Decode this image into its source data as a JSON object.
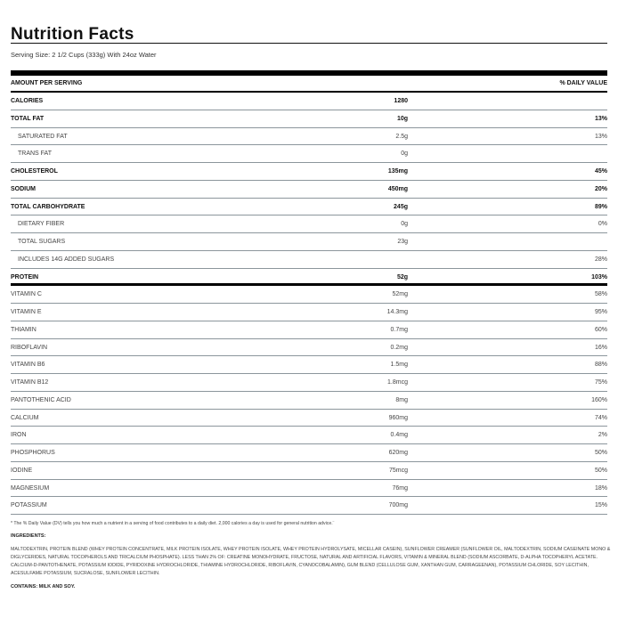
{
  "title": "Nutrition Facts",
  "serving_size": "Serving Size: 2 1/2 Cups (333g) With 24oz Water",
  "header": {
    "amount_label": "AMOUNT PER SERVING",
    "dv_label": "% DAILY VALUE"
  },
  "rows": [
    {
      "name": "CALORIES",
      "amount": "1280",
      "dv": "",
      "style": "bold"
    },
    {
      "name": "TOTAL FAT",
      "amount": "10g",
      "dv": "13%",
      "style": "bold"
    },
    {
      "name": "SATURATED FAT",
      "amount": "2.5g",
      "dv": "13%",
      "style": "indent"
    },
    {
      "name": "TRANS FAT",
      "amount": "0g",
      "dv": "",
      "style": "indent"
    },
    {
      "name": "CHOLESTEROL",
      "amount": "135mg",
      "dv": "45%",
      "style": "bold"
    },
    {
      "name": "SODIUM",
      "amount": "450mg",
      "dv": "20%",
      "style": "bold"
    },
    {
      "name": "TOTAL CARBOHYDRATE",
      "amount": "245g",
      "dv": "89%",
      "style": "bold"
    },
    {
      "name": "DIETARY FIBER",
      "amount": "0g",
      "dv": "0%",
      "style": "indent"
    },
    {
      "name": "TOTAL SUGARS",
      "amount": "23g",
      "dv": "",
      "style": "indent"
    },
    {
      "name": "INCLUDES 14G ADDED SUGARS",
      "amount": "",
      "dv": "28%",
      "style": "indent"
    },
    {
      "name": "PROTEIN",
      "amount": "52g",
      "dv": "103%",
      "style": "bold thick"
    },
    {
      "name": "VITAMIN C",
      "amount": "52mg",
      "dv": "58%",
      "style": ""
    },
    {
      "name": "VITAMIN E",
      "amount": "14.3mg",
      "dv": "95%",
      "style": ""
    },
    {
      "name": "THIAMIN",
      "amount": "0.7mg",
      "dv": "60%",
      "style": ""
    },
    {
      "name": "RIBOFLAVIN",
      "amount": "0.2mg",
      "dv": "16%",
      "style": ""
    },
    {
      "name": "VITAMIN B6",
      "amount": "1.5mg",
      "dv": "88%",
      "style": ""
    },
    {
      "name": "VITAMIN B12",
      "amount": "1.8mcg",
      "dv": "75%",
      "style": ""
    },
    {
      "name": "PANTOTHENIC ACID",
      "amount": "8mg",
      "dv": "160%",
      "style": ""
    },
    {
      "name": "CALCIUM",
      "amount": "960mg",
      "dv": "74%",
      "style": ""
    },
    {
      "name": "IRON",
      "amount": "0.4mg",
      "dv": "2%",
      "style": ""
    },
    {
      "name": "PHOSPHORUS",
      "amount": "620mg",
      "dv": "50%",
      "style": ""
    },
    {
      "name": "IODINE",
      "amount": "75mcg",
      "dv": "50%",
      "style": ""
    },
    {
      "name": "MAGNESIUM",
      "amount": "76mg",
      "dv": "18%",
      "style": ""
    },
    {
      "name": "POTASSIUM",
      "amount": "700mg",
      "dv": "15%",
      "style": ""
    }
  ],
  "footnote": "* The % Daily Value (DV) tells you how much a nutrient in a serving of food contributes to a daily diet. 2,000 calories a day is used for general nutrition advice.¨",
  "ingredients_heading": "INGREDIENTS:",
  "ingredients": "MALTODEXTRIN, PROTEIN BLEND (WHEY PROTEIN CONCENTRATE, MILK PROTEIN ISOLATE, WHEY PROTEIN ISOLATE, WHEY PROTEIN HYDROLYSATE, MICELLAR CASEIN), SUNFLOWER CREAMER (SUNFLOWER OIL, MALTODEXTRIN, SODIUM CASEINATE MONO & DIGLYCERIDES, NATURAL TOCOPHEROLS AND TRICALCIUM PHOSPHATE). LESS THAN 2% OF: CREATINE MONOHYDRATE, FRUCTOSE, NATURAL AND ARTIFICIAL FLAVORS, VITAMIN & MINERAL BLEND (SODIUM ASCORBATE, D-ALPHA TOCOPHERYL ACETATE. CALCIUM-D-PANTOTHENATE, POTASSIUM IODIDE, PYRIDOXINE HYDROCHLORIDE, THIAMINE HYDROCHLORIDE, RIBOFLAVIN, CYANOCOBALAMIN), GUM BLEND (CELLULOSE GUM, XANTHAN GUM, CARRAGEENAN), POTASSIUM CHLORIDE, SOY LECITHIN, ACESULFAME POTASSIUM, SUCRALOSE, SUNFLOWER LECITHIN.",
  "contains": "CONTAINS: MILK AND SOY."
}
